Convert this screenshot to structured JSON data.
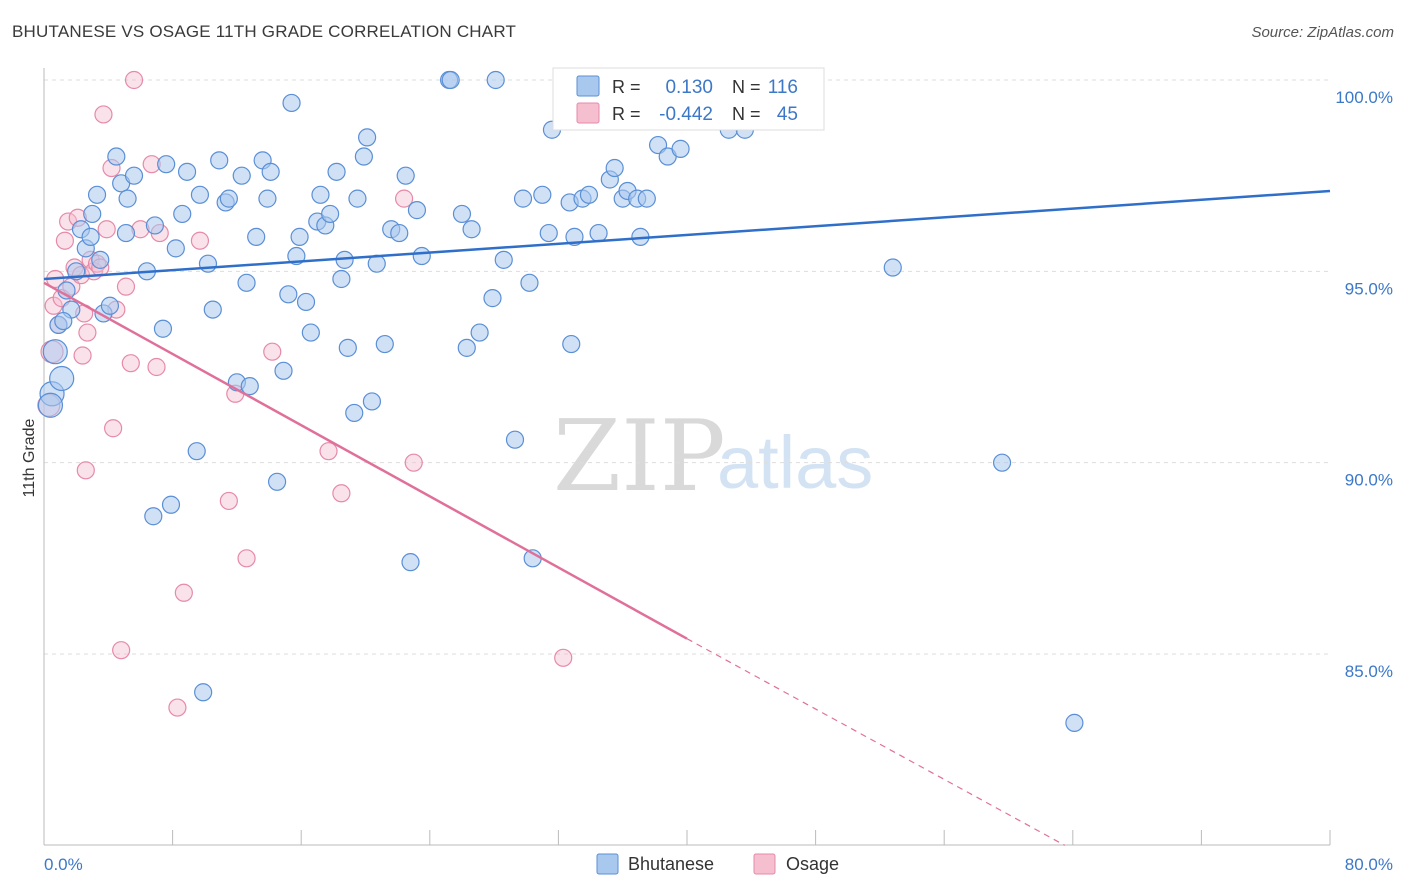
{
  "title": "BHUTANESE VS OSAGE 11TH GRADE CORRELATION CHART",
  "source": "Source: ZipAtlas.com",
  "watermark": {
    "zip": "ZIP",
    "atlas": "atlas"
  },
  "legend_box": {
    "rows": [
      {
        "r_label": "R =",
        "r_value": "0.130",
        "n_label": "N =",
        "n_value": "116"
      },
      {
        "r_label": "R =",
        "r_value": "-0.442",
        "n_label": "N =",
        "n_value": "45"
      }
    ]
  },
  "colors": {
    "bhutanese_fill": "#a9c8ee",
    "bhutanese_stroke": "#5a8fd6",
    "bhutanese_line": "#2f6fc9",
    "osage_fill": "#f5bfd0",
    "osage_stroke": "#e68aa8",
    "osage_line": "#e0709a",
    "tick_text": "#3c78c8",
    "grid": "#dddddd"
  },
  "chart_data": {
    "type": "scatter",
    "title": "BHUTANESE VS OSAGE 11TH GRADE CORRELATION CHART",
    "xlabel": "",
    "ylabel": "11th Grade",
    "xlim": [
      0,
      80
    ],
    "ylim": [
      80,
      100.8
    ],
    "x_tick_labels": [
      "0.0%",
      "80.0%"
    ],
    "y_ticks": [
      85,
      90,
      95,
      100
    ],
    "y_tick_labels": [
      "85.0%",
      "90.0%",
      "95.0%",
      "100.0%"
    ],
    "grid": "horizontal dashed",
    "legend": "bottom-center",
    "series": [
      {
        "name": "Bhutanese",
        "r": 0.13,
        "n": 116,
        "trend": {
          "x": [
            0,
            80
          ],
          "y": [
            94.8,
            97.1
          ]
        },
        "points": [
          [
            0.5,
            91.8
          ],
          [
            0.7,
            92.9
          ],
          [
            0.9,
            93.6
          ],
          [
            1.1,
            92.2
          ],
          [
            1.4,
            94.5
          ],
          [
            1.7,
            94.0
          ],
          [
            2.0,
            95.0
          ],
          [
            2.3,
            96.1
          ],
          [
            2.6,
            95.6
          ],
          [
            3.0,
            96.5
          ],
          [
            3.3,
            97.0
          ],
          [
            3.7,
            93.9
          ],
          [
            4.1,
            94.1
          ],
          [
            4.5,
            98.0
          ],
          [
            4.8,
            97.3
          ],
          [
            5.2,
            96.9
          ],
          [
            5.6,
            97.5
          ],
          [
            6.4,
            95.0
          ],
          [
            6.9,
            96.2
          ],
          [
            7.4,
            93.5
          ],
          [
            7.6,
            97.8
          ],
          [
            8.2,
            95.6
          ],
          [
            8.6,
            96.5
          ],
          [
            8.9,
            97.6
          ],
          [
            9.5,
            90.3
          ],
          [
            9.7,
            97.0
          ],
          [
            10.2,
            95.2
          ],
          [
            10.5,
            94.0
          ],
          [
            10.9,
            97.9
          ],
          [
            11.3,
            96.8
          ],
          [
            11.5,
            96.9
          ],
          [
            12.0,
            92.1
          ],
          [
            12.3,
            97.5
          ],
          [
            12.6,
            94.7
          ],
          [
            12.8,
            92.0
          ],
          [
            13.2,
            95.9
          ],
          [
            13.6,
            97.9
          ],
          [
            13.9,
            96.9
          ],
          [
            14.1,
            97.6
          ],
          [
            14.5,
            89.5
          ],
          [
            14.9,
            92.4
          ],
          [
            15.2,
            94.4
          ],
          [
            15.4,
            99.4
          ],
          [
            15.7,
            95.4
          ],
          [
            15.9,
            95.9
          ],
          [
            16.3,
            94.2
          ],
          [
            16.6,
            93.4
          ],
          [
            17.0,
            96.3
          ],
          [
            17.2,
            97.0
          ],
          [
            17.5,
            96.2
          ],
          [
            17.8,
            96.5
          ],
          [
            18.2,
            97.6
          ],
          [
            18.5,
            94.8
          ],
          [
            18.7,
            95.3
          ],
          [
            18.9,
            93.0
          ],
          [
            19.3,
            91.3
          ],
          [
            19.5,
            96.9
          ],
          [
            19.9,
            98.0
          ],
          [
            20.1,
            98.5
          ],
          [
            20.4,
            91.6
          ],
          [
            20.7,
            95.2
          ],
          [
            21.2,
            93.1
          ],
          [
            21.6,
            96.1
          ],
          [
            22.1,
            96.0
          ],
          [
            22.5,
            97.5
          ],
          [
            22.8,
            87.4
          ],
          [
            23.2,
            96.6
          ],
          [
            23.5,
            95.4
          ],
          [
            25.2,
            100.0
          ],
          [
            25.3,
            100.0
          ],
          [
            26.0,
            96.5
          ],
          [
            26.3,
            93.0
          ],
          [
            26.6,
            96.1
          ],
          [
            27.1,
            93.4
          ],
          [
            27.9,
            94.3
          ],
          [
            28.1,
            100.0
          ],
          [
            28.6,
            95.3
          ],
          [
            29.3,
            90.6
          ],
          [
            29.8,
            96.9
          ],
          [
            30.2,
            94.7
          ],
          [
            30.4,
            87.5
          ],
          [
            31.0,
            97.0
          ],
          [
            31.4,
            96.0
          ],
          [
            31.6,
            98.7
          ],
          [
            32.7,
            96.8
          ],
          [
            32.8,
            93.1
          ],
          [
            33.0,
            95.9
          ],
          [
            33.5,
            96.9
          ],
          [
            33.9,
            97.0
          ],
          [
            34.5,
            96.0
          ],
          [
            35.2,
            97.4
          ],
          [
            35.5,
            97.7
          ],
          [
            36.0,
            96.9
          ],
          [
            36.3,
            97.1
          ],
          [
            36.9,
            96.9
          ],
          [
            37.1,
            95.9
          ],
          [
            37.5,
            96.9
          ],
          [
            38.2,
            98.3
          ],
          [
            38.8,
            98.0
          ],
          [
            39.6,
            98.2
          ],
          [
            42.6,
            98.7
          ],
          [
            42.9,
            100.0
          ],
          [
            43.6,
            98.7
          ],
          [
            44.6,
            99.3
          ],
          [
            44.8,
            100.0
          ],
          [
            52.8,
            95.1
          ],
          [
            59.6,
            90.0
          ],
          [
            64.1,
            83.2
          ],
          [
            3.5,
            95.3
          ],
          [
            7.9,
            88.9
          ],
          [
            6.8,
            88.6
          ],
          [
            9.9,
            84.0
          ],
          [
            1.2,
            93.7
          ],
          [
            0.4,
            91.5
          ],
          [
            2.9,
            95.9
          ],
          [
            5.1,
            96.0
          ]
        ]
      },
      {
        "name": "Osage",
        "r": -0.442,
        "n": 45,
        "trend": {
          "x": [
            0,
            40
          ],
          "y": [
            94.7,
            85.4
          ]
        },
        "trend_dashed": {
          "x": [
            40,
            63.5
          ],
          "y": [
            85.4,
            80.0
          ]
        },
        "points": [
          [
            0.3,
            91.5
          ],
          [
            0.5,
            92.9
          ],
          [
            0.6,
            94.1
          ],
          [
            0.7,
            94.8
          ],
          [
            0.9,
            93.6
          ],
          [
            1.1,
            94.3
          ],
          [
            1.3,
            95.8
          ],
          [
            1.5,
            96.3
          ],
          [
            1.7,
            94.6
          ],
          [
            1.9,
            95.1
          ],
          [
            2.1,
            96.4
          ],
          [
            2.3,
            94.9
          ],
          [
            2.5,
            93.9
          ],
          [
            2.6,
            89.8
          ],
          [
            2.7,
            93.4
          ],
          [
            2.9,
            95.3
          ],
          [
            3.1,
            95.0
          ],
          [
            3.3,
            95.2
          ],
          [
            3.5,
            95.1
          ],
          [
            3.7,
            99.1
          ],
          [
            3.9,
            96.1
          ],
          [
            4.2,
            97.7
          ],
          [
            4.5,
            94.0
          ],
          [
            4.8,
            85.1
          ],
          [
            5.1,
            94.6
          ],
          [
            5.4,
            92.6
          ],
          [
            5.6,
            100.0
          ],
          [
            6.0,
            96.1
          ],
          [
            6.7,
            97.8
          ],
          [
            7.0,
            92.5
          ],
          [
            7.2,
            96.0
          ],
          [
            8.3,
            83.6
          ],
          [
            8.7,
            86.6
          ],
          [
            9.7,
            95.8
          ],
          [
            11.5,
            89.0
          ],
          [
            11.9,
            91.8
          ],
          [
            12.6,
            87.5
          ],
          [
            14.2,
            92.9
          ],
          [
            17.7,
            90.3
          ],
          [
            18.5,
            89.2
          ],
          [
            22.4,
            96.9
          ],
          [
            23.0,
            90.0
          ],
          [
            32.3,
            84.9
          ],
          [
            4.3,
            90.9
          ],
          [
            2.4,
            92.8
          ]
        ]
      }
    ]
  }
}
